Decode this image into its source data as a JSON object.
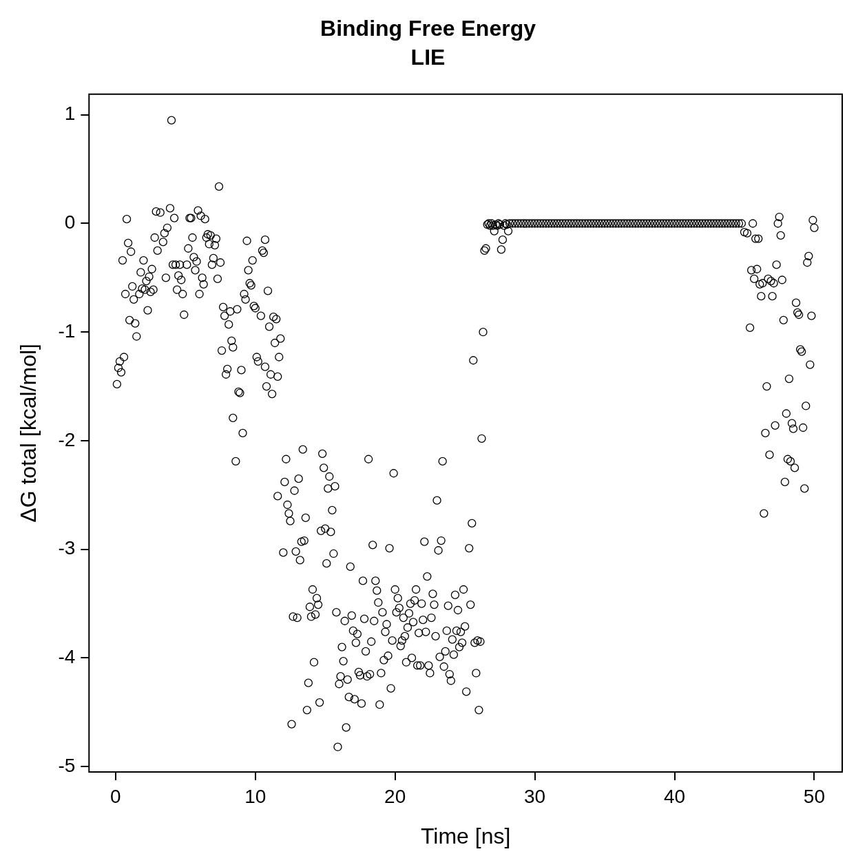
{
  "chart_data": {
    "type": "scatter",
    "title": "Binding Free Energy",
    "subtitle": "LIE",
    "xlabel": "Time [ns]",
    "ylabel": "ΔG total [kcal/mol]",
    "xlim": [
      -1.9,
      52.0
    ],
    "ylim": [
      -5.05,
      1.19
    ],
    "xticks": [
      0,
      10,
      20,
      30,
      40,
      50
    ],
    "yticks": [
      -5,
      -4,
      -3,
      -2,
      -1,
      0,
      1
    ],
    "grid": false,
    "legend": false,
    "marker": "circle",
    "series": [
      {
        "color": "#000000",
        "x": [
          0.1,
          0.2,
          0.3,
          0.4,
          0.5,
          0.6,
          0.7,
          0.8,
          0.9,
          1.0,
          1.1,
          1.2,
          1.3,
          1.4,
          1.5,
          1.7,
          1.8,
          1.9,
          2.0,
          2.1,
          2.2,
          2.3,
          2.4,
          2.5,
          2.6,
          2.7,
          2.8,
          2.9,
          3.0,
          3.2,
          3.4,
          3.5,
          3.6,
          3.7,
          3.9,
          4.0,
          4.1,
          4.2,
          4.3,
          4.4,
          4.5,
          4.6,
          4.7,
          4.8,
          4.9,
          5.1,
          5.2,
          5.3,
          5.4,
          5.5,
          5.6,
          5.7,
          5.8,
          5.9,
          6.0,
          6.1,
          6.2,
          6.3,
          6.4,
          6.5,
          6.6,
          6.7,
          6.8,
          6.9,
          7.0,
          7.1,
          7.2,
          7.3,
          7.4,
          7.5,
          7.6,
          7.7,
          7.8,
          7.9,
          8.0,
          8.1,
          8.2,
          8.3,
          8.4,
          8.4,
          8.6,
          8.7,
          8.8,
          8.9,
          9.0,
          9.1,
          9.2,
          9.3,
          9.4,
          9.5,
          9.6,
          9.7,
          9.8,
          9.9,
          10.0,
          10.1,
          10.2,
          10.4,
          10.5,
          10.6,
          10.7,
          10.7,
          10.8,
          10.9,
          11.0,
          11.1,
          11.2,
          11.3,
          11.4,
          11.5,
          11.6,
          11.7,
          11.8,
          11.6,
          12.0,
          12.1,
          12.2,
          12.3,
          12.4,
          12.5,
          12.6,
          12.7,
          12.8,
          12.9,
          13.0,
          13.1,
          13.2,
          13.3,
          13.4,
          13.5,
          13.6,
          13.7,
          13.8,
          13.9,
          14.0,
          14.1,
          14.2,
          14.3,
          14.4,
          14.5,
          14.6,
          14.7,
          14.8,
          14.9,
          15.0,
          15.1,
          15.2,
          15.3,
          15.4,
          15.5,
          15.6,
          15.7,
          15.8,
          15.9,
          16.0,
          16.1,
          16.2,
          16.3,
          16.4,
          16.5,
          16.6,
          16.7,
          16.8,
          16.9,
          17.0,
          17.1,
          17.2,
          17.3,
          17.4,
          17.5,
          17.6,
          17.7,
          17.8,
          17.9,
          18.0,
          18.1,
          18.2,
          18.3,
          18.4,
          18.5,
          18.6,
          18.7,
          18.8,
          18.9,
          19.0,
          19.1,
          19.2,
          19.3,
          19.4,
          19.5,
          19.6,
          19.7,
          19.8,
          19.9,
          20.0,
          20.1,
          20.2,
          20.3,
          20.4,
          20.5,
          20.6,
          20.7,
          20.8,
          20.9,
          21.0,
          21.1,
          21.2,
          21.3,
          21.4,
          21.5,
          21.6,
          21.7,
          21.8,
          21.9,
          22.0,
          22.1,
          22.2,
          22.3,
          22.4,
          22.5,
          22.6,
          22.7,
          22.8,
          22.9,
          23.0,
          23.1,
          23.2,
          23.3,
          23.4,
          23.5,
          23.6,
          23.7,
          23.8,
          23.9,
          24.0,
          24.1,
          24.2,
          24.3,
          24.4,
          24.5,
          24.6,
          24.7,
          24.8,
          24.9,
          25.0,
          25.1,
          25.3,
          25.4,
          25.5,
          25.6,
          25.7,
          25.8,
          25.9,
          26.0,
          26.1,
          26.2,
          26.3,
          26.4,
          26.5,
          26.6,
          26.7,
          26.8,
          26.9,
          27.0,
          27.1,
          27.2,
          27.3,
          27.4,
          27.5,
          27.6,
          27.7,
          27.8,
          27.9,
          28.0,
          28.1
        ],
        "values": [
          -1.48,
          -1.33,
          -1.27,
          -1.37,
          -0.34,
          -1.23,
          -0.65,
          0.04,
          -0.18,
          -0.89,
          -0.26,
          -0.58,
          -0.7,
          -0.92,
          -1.04,
          -0.65,
          -0.45,
          -0.6,
          -0.34,
          -0.61,
          -0.53,
          -0.8,
          -0.49,
          -0.63,
          -0.42,
          -0.61,
          -0.13,
          0.11,
          -0.25,
          0.1,
          -0.17,
          -0.09,
          -0.5,
          -0.04,
          0.14,
          0.95,
          -0.38,
          0.05,
          -0.38,
          -0.61,
          -0.48,
          -0.38,
          -0.52,
          -0.65,
          -0.84,
          -0.38,
          -0.23,
          0.05,
          0.05,
          -0.13,
          -0.31,
          -0.43,
          -0.35,
          0.12,
          -0.65,
          0.07,
          -0.5,
          -0.56,
          0.04,
          -0.13,
          -0.1,
          -0.19,
          -0.11,
          -0.38,
          -0.32,
          -0.2,
          -0.14,
          -0.51,
          0.34,
          -0.36,
          -1.17,
          -0.77,
          -0.85,
          -1.39,
          -1.34,
          -0.93,
          -0.81,
          -1.08,
          -1.14,
          -1.79,
          -2.19,
          -0.79,
          -1.55,
          -1.56,
          -1.35,
          -1.93,
          -0.65,
          -0.7,
          -0.16,
          -0.43,
          -0.55,
          -0.57,
          -0.34,
          -0.76,
          -0.78,
          -1.23,
          -1.27,
          -0.85,
          -0.25,
          -0.27,
          -0.15,
          -1.32,
          -1.5,
          -0.62,
          -0.95,
          -1.39,
          -1.57,
          -0.86,
          -1.1,
          -0.88,
          -1.41,
          -1.23,
          -1.06,
          -2.51,
          -3.03,
          -2.38,
          -2.17,
          -2.59,
          -2.67,
          -2.74,
          -4.61,
          -3.62,
          -2.46,
          -3.02,
          -3.63,
          -2.35,
          -3.1,
          -2.93,
          -2.08,
          -2.92,
          -2.71,
          -4.48,
          -4.23,
          -3.53,
          -3.62,
          -3.37,
          -4.04,
          -3.6,
          -3.45,
          -3.51,
          -4.41,
          -2.83,
          -2.12,
          -2.25,
          -2.81,
          -3.13,
          -2.44,
          -2.33,
          -2.84,
          -2.64,
          -3.04,
          -2.42,
          -3.58,
          -4.82,
          -4.24,
          -4.17,
          -3.9,
          -4.03,
          -3.66,
          -4.64,
          -4.2,
          -4.36,
          -3.16,
          -3.61,
          -3.75,
          -4.38,
          -3.86,
          -3.78,
          -4.13,
          -4.16,
          -4.42,
          -3.29,
          -3.64,
          -3.94,
          -4.17,
          -2.17,
          -4.15,
          -3.85,
          -2.96,
          -3.66,
          -3.29,
          -3.38,
          -3.49,
          -4.43,
          -4.14,
          -3.58,
          -4.02,
          -3.76,
          -3.69,
          -3.98,
          -2.99,
          -4.28,
          -3.84,
          -2.3,
          -3.37,
          -3.58,
          -3.45,
          -3.54,
          -3.89,
          -3.84,
          -3.63,
          -3.8,
          -4.04,
          -3.72,
          -3.59,
          -3.5,
          -4.0,
          -3.67,
          -3.47,
          -3.37,
          -4.07,
          -3.77,
          -4.07,
          -3.5,
          -3.65,
          -2.93,
          -3.76,
          -3.25,
          -4.07,
          -4.14,
          -3.63,
          -3.41,
          -3.51,
          -3.8,
          -2.55,
          -3.01,
          -3.99,
          -2.92,
          -2.19,
          -4.08,
          -3.94,
          -3.75,
          -3.52,
          -4.15,
          -4.21,
          -3.83,
          -3.97,
          -3.42,
          -3.75,
          -3.56,
          -3.9,
          -3.76,
          -3.86,
          -3.37,
          -3.71,
          -4.31,
          -2.99,
          -3.51,
          -2.76,
          -1.26,
          -3.86,
          -4.14,
          -3.84,
          -4.48,
          -3.85,
          -1.98,
          -1.0,
          -0.25,
          -0.23,
          -0.01,
          0,
          -0.02,
          0,
          -0.02,
          -0.07,
          -0.01,
          -0.02,
          0,
          -0.01,
          -0.24,
          -0.15,
          -0.02,
          0,
          -0.01,
          -0.07
        ]
      },
      {
        "color": "#000000",
        "x": [
          28.2,
          28.4,
          28.6,
          28.8,
          29,
          29.2,
          29.4,
          29.6,
          29.8,
          30,
          30.2,
          30.4,
          30.6,
          30.8,
          31,
          31.2,
          31.4,
          31.6,
          31.8,
          32,
          32.2,
          32.4,
          32.6,
          32.8,
          33,
          33.2,
          33.4,
          33.6,
          33.8,
          34,
          34.2,
          34.4,
          34.6,
          34.8,
          35,
          35.2,
          35.4,
          35.6,
          35.8,
          36,
          36.2,
          36.4,
          36.6,
          36.8,
          37,
          37.2,
          37.4,
          37.6,
          37.8,
          38,
          38.2,
          38.4,
          38.6,
          38.8,
          39,
          39.2,
          39.4,
          39.6,
          39.8,
          40,
          40.2,
          40.4,
          40.6,
          40.8,
          41,
          41.2,
          41.4,
          41.6,
          41.8,
          42,
          42.2,
          42.4,
          42.6,
          42.8,
          43,
          43.2,
          43.4,
          43.6,
          43.8,
          44,
          44.2,
          44.4,
          44.6,
          44.8
        ],
        "values": [
          0,
          0,
          0,
          0,
          0,
          0,
          0,
          0,
          0,
          0,
          0,
          0,
          0,
          0,
          0,
          0,
          0,
          0,
          0,
          0,
          0,
          0,
          0,
          0,
          0,
          0,
          0,
          0,
          0,
          0,
          0,
          0,
          0,
          0,
          0,
          0,
          0,
          0,
          0,
          0,
          0,
          0,
          0,
          0,
          0,
          0,
          0,
          0,
          0,
          0,
          0,
          0,
          0,
          0,
          0,
          0,
          0,
          0,
          0,
          0,
          0,
          0,
          0,
          0,
          0,
          0,
          0,
          0,
          0,
          0,
          0,
          0,
          0,
          0,
          0,
          0,
          0,
          0,
          0,
          0,
          0,
          0,
          0,
          0
        ]
      },
      {
        "color": "#000000",
        "x": [
          45.0,
          45.2,
          45.4,
          45.5,
          45.6,
          45.7,
          45.8,
          45.9,
          46.0,
          46.1,
          46.2,
          46.3,
          46.4,
          46.5,
          46.6,
          46.7,
          46.8,
          46.9,
          47.0,
          47.1,
          47.2,
          47.3,
          47.4,
          47.5,
          47.6,
          47.7,
          47.8,
          47.9,
          48.0,
          48.1,
          48.2,
          48.3,
          48.4,
          48.5,
          48.6,
          48.7,
          48.8,
          48.9,
          49.0,
          49.1,
          49.2,
          49.3,
          49.4,
          49.5,
          49.6,
          49.7,
          49.8,
          49.9,
          50.0
        ],
        "values": [
          -0.08,
          -0.09,
          -0.96,
          -0.43,
          0,
          -0.51,
          -0.14,
          -0.42,
          -0.14,
          -0.56,
          -0.67,
          -0.55,
          -2.67,
          -1.93,
          -1.5,
          -0.51,
          -2.13,
          -0.53,
          -0.67,
          -0.55,
          -1.86,
          -0.38,
          0,
          0.06,
          -0.11,
          -0.52,
          -0.89,
          -2.38,
          -1.75,
          -2.17,
          -1.43,
          -2.19,
          -1.84,
          -1.89,
          -2.25,
          -0.73,
          -0.82,
          -0.84,
          -1.16,
          -1.18,
          -1.88,
          -2.44,
          -1.68,
          -0.36,
          -0.3,
          -1.3,
          -0.85,
          0.03,
          -0.04
        ]
      }
    ]
  }
}
